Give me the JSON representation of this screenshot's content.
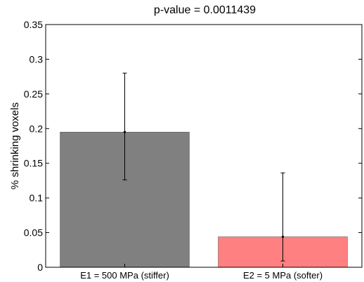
{
  "chart_data": {
    "type": "bar",
    "title": "p-value = 0.0011439",
    "xlabel": "",
    "ylabel": "% shrinking voxels",
    "categories": [
      "E1 = 500 MPa (stiffer)",
      "E2 = 5 MPa (softer)"
    ],
    "values": [
      0.195,
      0.044
    ],
    "error_low": [
      0.126,
      0.009
    ],
    "error_high": [
      0.28,
      0.136
    ],
    "bar_colors": [
      "#808080",
      "#ff8080"
    ],
    "ylim": [
      0,
      0.35
    ],
    "yticks": [
      0,
      0.05,
      0.1,
      0.15,
      0.2,
      0.25,
      0.3,
      0.35
    ],
    "ytick_labels": [
      "0",
      "0.05",
      "0.1",
      "0.15",
      "0.2",
      "0.25",
      "0.3",
      "0.35"
    ],
    "grid": false,
    "legend": false
  }
}
